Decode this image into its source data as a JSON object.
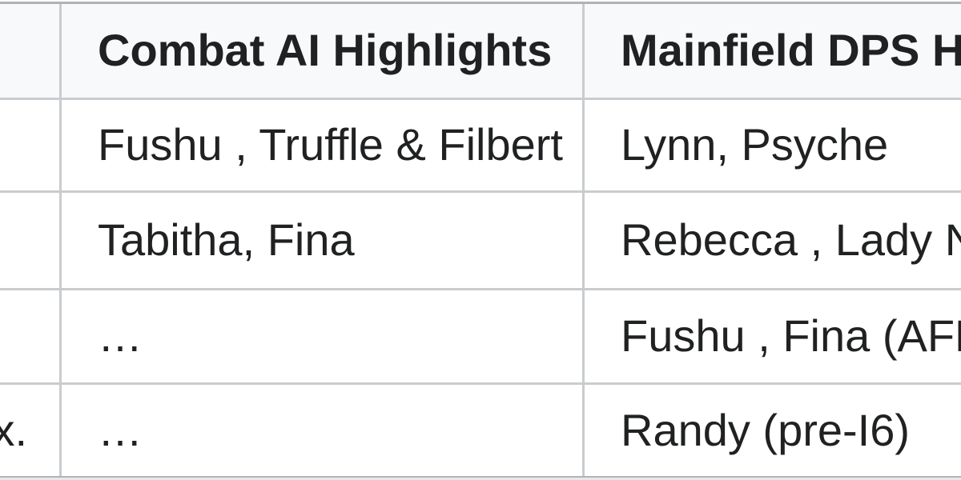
{
  "colors": {
    "header_bg": "#f8f9fa",
    "cell_bg": "#ffffff",
    "border_inner": "#c9cccf",
    "border_outer": "#b0b3b6",
    "text": "#202122",
    "page_bg": "#ffffff",
    "edge_strip": "#e7e8ea"
  },
  "table": {
    "columns": [
      {
        "id": "row-label",
        "header": ""
      },
      {
        "id": "combat-ai",
        "header": "Combat AI Highlights"
      },
      {
        "id": "mainfield-dps",
        "header": "Mainfield DPS Highlights"
      }
    ],
    "rows": [
      {
        "label": "",
        "combat_ai": "Fushu , Truffle & Filbert",
        "mainfield_dps": "Lynn, Psyche"
      },
      {
        "label": "",
        "combat_ai": "Tabitha, Fina",
        "mainfield_dps": "Rebecca , Lady N"
      },
      {
        "label": "",
        "combat_ai": "…",
        "mainfield_dps": "Fushu , Fina (AFK"
      },
      {
        "label": "x.",
        "combat_ai": "…",
        "mainfield_dps": "Randy (pre-I6)"
      }
    ]
  }
}
